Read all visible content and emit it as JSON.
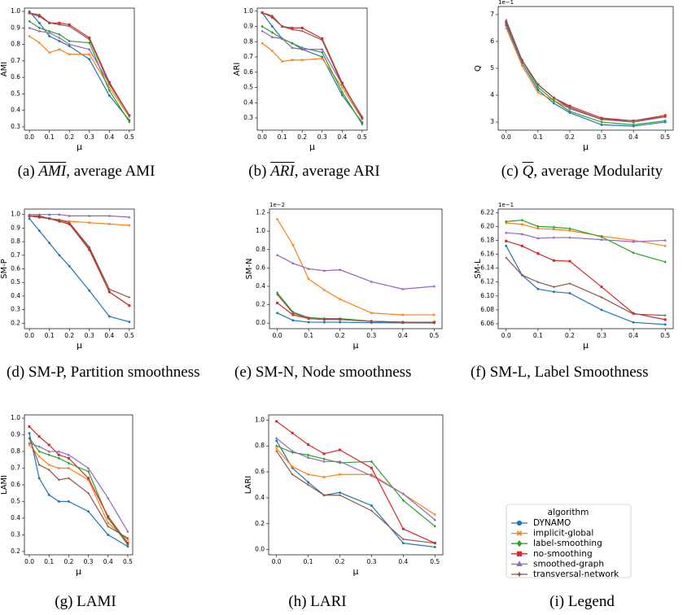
{
  "chart_data": [
    {
      "type": "line",
      "ylabel": "AMI",
      "xlabel": "μ",
      "x": [
        0,
        0.05,
        0.1,
        0.15,
        0.2,
        0.3,
        0.4,
        0.5
      ],
      "xlim": [
        -0.025,
        0.525
      ],
      "xticks": [
        {
          "value": 0,
          "label": "0.0"
        },
        0.1,
        0.2,
        0.3,
        0.4,
        0.5
      ],
      "ylim": [
        0.28,
        1.02
      ],
      "yticks": [
        0.3,
        0.4,
        0.5,
        0.6,
        0.7,
        0.8,
        0.9,
        {
          "value": 1,
          "label": "1.0"
        }
      ],
      "series": [
        {
          "values": [
            1.0,
            0.93,
            0.85,
            0.82,
            0.79,
            0.71,
            0.49,
            0.34
          ]
        },
        {
          "values": [
            0.85,
            0.81,
            0.75,
            0.77,
            0.74,
            0.74,
            0.54,
            0.36
          ]
        },
        {
          "values": [
            0.94,
            0.9,
            0.88,
            0.86,
            0.82,
            0.81,
            0.52,
            0.33
          ]
        },
        {
          "values": [
            0.99,
            0.97,
            0.93,
            0.93,
            0.92,
            0.84,
            0.57,
            0.37
          ]
        },
        {
          "values": [
            0.9,
            0.88,
            0.87,
            0.84,
            0.8,
            0.77,
            0.56,
            0.37
          ]
        },
        {
          "values": [
            0.99,
            0.98,
            0.93,
            0.92,
            0.91,
            0.83,
            0.56,
            0.37
          ]
        }
      ],
      "caption": {
        "label": "(a)",
        "symbol": "AMI",
        "text": ", average AMI"
      }
    },
    {
      "type": "line",
      "ylabel": "ARI",
      "xlabel": "μ",
      "x": [
        0,
        0.05,
        0.1,
        0.15,
        0.2,
        0.3,
        0.4,
        0.5
      ],
      "xlim": [
        -0.025,
        0.525
      ],
      "xticks": [
        {
          "value": 0,
          "label": "0.0"
        },
        0.1,
        0.2,
        0.3,
        0.4,
        0.5
      ],
      "ylim": [
        0.22,
        1.02
      ],
      "yticks": [
        0.3,
        0.4,
        0.5,
        0.6,
        0.7,
        0.8,
        0.9,
        {
          "value": 1,
          "label": "1.0"
        }
      ],
      "series": [
        {
          "values": [
            0.99,
            0.9,
            0.82,
            0.79,
            0.75,
            0.7,
            0.45,
            0.27
          ]
        },
        {
          "values": [
            0.79,
            0.74,
            0.67,
            0.68,
            0.68,
            0.69,
            0.5,
            0.29
          ]
        },
        {
          "values": [
            0.9,
            0.86,
            0.82,
            0.79,
            0.76,
            0.73,
            0.47,
            0.26
          ]
        },
        {
          "values": [
            0.99,
            0.96,
            0.9,
            0.89,
            0.89,
            0.82,
            0.53,
            0.3
          ]
        },
        {
          "values": [
            0.87,
            0.83,
            0.82,
            0.76,
            0.75,
            0.75,
            0.52,
            0.31
          ]
        },
        {
          "values": [
            0.99,
            0.97,
            0.9,
            0.88,
            0.87,
            0.81,
            0.52,
            0.3
          ]
        }
      ],
      "caption": {
        "label": "(b)",
        "symbol": "ARI",
        "text": ", average ARI"
      }
    },
    {
      "type": "line",
      "ylabel": "Q",
      "xlabel": "μ",
      "scale_label": "1e−1",
      "x": [
        0,
        0.05,
        0.1,
        0.15,
        0.2,
        0.3,
        0.4,
        0.5
      ],
      "xlim": [
        -0.025,
        0.525
      ],
      "xticks": [
        {
          "value": 0,
          "label": "0.0"
        },
        0.1,
        0.2,
        0.3,
        0.4,
        0.5
      ],
      "ylim": [
        2.7,
        7.3
      ],
      "yticks": [
        3,
        4,
        5,
        6,
        7
      ],
      "series": [
        {
          "values": [
            6.6,
            5.2,
            4.2,
            3.7,
            3.35,
            2.9,
            2.85,
            3.0
          ]
        },
        {
          "values": [
            6.5,
            5.1,
            4.1,
            3.8,
            3.5,
            3.1,
            3.0,
            3.2
          ]
        },
        {
          "values": [
            6.7,
            5.3,
            4.3,
            3.8,
            3.4,
            3.0,
            2.9,
            3.05
          ]
        },
        {
          "values": [
            6.7,
            5.3,
            4.4,
            3.9,
            3.6,
            3.15,
            3.05,
            3.25
          ]
        },
        {
          "values": [
            6.8,
            5.3,
            4.4,
            3.9,
            3.5,
            3.1,
            3.0,
            3.2
          ]
        },
        {
          "values": [
            6.75,
            5.3,
            4.4,
            3.9,
            3.55,
            3.1,
            3.05,
            3.2
          ]
        }
      ],
      "caption": {
        "label": "(c)",
        "symbol": "Q",
        "text": ", average Modularity"
      }
    },
    {
      "type": "line",
      "ylabel": "SM-P",
      "xlabel": "μ",
      "x": [
        0,
        0.05,
        0.1,
        0.15,
        0.2,
        0.3,
        0.4,
        0.5
      ],
      "xlim": [
        -0.025,
        0.525
      ],
      "xticks": [
        {
          "value": 0,
          "label": "0.0"
        },
        0.1,
        0.2,
        0.3,
        0.4,
        0.5
      ],
      "ylim": [
        0.16,
        1.04
      ],
      "yticks": [
        0.2,
        0.3,
        0.4,
        0.5,
        0.6,
        0.7,
        0.8,
        0.9,
        {
          "value": 1,
          "label": "1.0"
        }
      ],
      "series": [
        {
          "values": [
            0.97,
            0.88,
            0.79,
            0.7,
            0.62,
            0.44,
            0.25,
            0.21
          ]
        },
        {
          "values": [
            0.99,
            0.98,
            0.97,
            0.96,
            0.95,
            0.94,
            0.93,
            0.92
          ]
        },
        {
          "values": [
            0.99,
            0.98,
            0.97,
            0.95,
            0.93,
            0.75,
            0.43,
            0.33
          ]
        },
        {
          "values": [
            0.99,
            0.98,
            0.97,
            0.95,
            0.93,
            0.74,
            0.43,
            0.33
          ]
        },
        {
          "values": [
            1.0,
            1.0,
            1.0,
            1.0,
            0.99,
            0.99,
            0.99,
            0.98
          ]
        },
        {
          "values": [
            0.99,
            0.99,
            0.97,
            0.96,
            0.94,
            0.76,
            0.45,
            0.39
          ]
        }
      ],
      "caption": {
        "label": "(d)",
        "text": "SM-P, Partition smoothness"
      }
    },
    {
      "type": "line",
      "ylabel": "SM-N",
      "xlabel": "μ",
      "scale_label": "1e−2",
      "x": [
        0,
        0.05,
        0.1,
        0.15,
        0.2,
        0.3,
        0.4,
        0.5
      ],
      "xlim": [
        -0.025,
        0.525
      ],
      "xticks": [
        {
          "value": 0,
          "label": "0.0"
        },
        0.1,
        0.2,
        0.3,
        0.4,
        0.5
      ],
      "ylim": [
        -0.06,
        1.24
      ],
      "yticks": [
        {
          "value": 0,
          "label": "0.0"
        },
        0.2,
        0.4,
        0.6,
        0.8,
        {
          "value": 1,
          "label": "1.0"
        },
        1.2
      ],
      "series": [
        {
          "values": [
            0.11,
            0.03,
            0.01,
            0.01,
            0.01,
            0.005,
            0.003,
            0.002
          ]
        },
        {
          "values": [
            1.13,
            0.85,
            0.48,
            0.36,
            0.26,
            0.11,
            0.09,
            0.09
          ]
        },
        {
          "values": [
            0.33,
            0.12,
            0.06,
            0.05,
            0.05,
            0.02,
            0.01,
            0.01
          ]
        },
        {
          "values": [
            0.22,
            0.09,
            0.05,
            0.04,
            0.04,
            0.02,
            0.01,
            0.01
          ]
        },
        {
          "values": [
            0.74,
            0.65,
            0.59,
            0.57,
            0.58,
            0.45,
            0.37,
            0.4
          ]
        },
        {
          "values": [
            0.31,
            0.11,
            0.05,
            0.04,
            0.04,
            0.02,
            0.01,
            0.01
          ]
        }
      ],
      "caption": {
        "label": "(e)",
        "text": "SM-N, Node smooth­ness"
      }
    },
    {
      "type": "line",
      "ylabel": "SM-L",
      "xlabel": "μ",
      "scale_label": "1e−1",
      "x": [
        0,
        0.05,
        0.1,
        0.15,
        0.2,
        0.3,
        0.4,
        0.5
      ],
      "xlim": [
        -0.025,
        0.525
      ],
      "xticks": [
        {
          "value": 0,
          "label": "0.0"
        },
        0.1,
        0.2,
        0.3,
        0.4,
        0.5
      ],
      "ylim": [
        6.053,
        6.225
      ],
      "yticks": [
        6.06,
        6.08,
        {
          "value": 6.1,
          "label": "6.10"
        },
        6.12,
        6.14,
        6.16,
        6.18,
        {
          "value": 6.2,
          "label": "6.20"
        },
        6.22
      ],
      "series": [
        {
          "values": [
            6.172,
            6.13,
            6.11,
            6.106,
            6.104,
            6.08,
            6.062,
            6.059
          ]
        },
        {
          "values": [
            6.205,
            6.203,
            6.197,
            6.196,
            6.194,
            6.186,
            6.18,
            6.172
          ]
        },
        {
          "values": [
            6.207,
            6.209,
            6.2,
            6.199,
            6.197,
            6.185,
            6.162,
            6.149
          ]
        },
        {
          "values": [
            6.179,
            6.172,
            6.161,
            6.151,
            6.15,
            6.113,
            6.075,
            6.066
          ]
        },
        {
          "values": [
            6.191,
            6.189,
            6.183,
            6.184,
            6.184,
            6.181,
            6.178,
            6.18
          ]
        },
        {
          "values": [
            6.155,
            6.13,
            6.12,
            6.113,
            6.118,
            6.098,
            6.074,
            6.072
          ]
        }
      ],
      "caption": {
        "label": "(f)",
        "text": "SM-L, Label Smooth­ness"
      }
    },
    {
      "type": "line",
      "ylabel": "LAMI",
      "xlabel": "μ",
      "x": [
        0,
        0.05,
        0.1,
        0.15,
        0.2,
        0.3,
        0.4,
        0.5
      ],
      "xlim": [
        -0.025,
        0.525
      ],
      "xticks": [
        {
          "value": 0,
          "label": "0.0"
        },
        0.1,
        0.2,
        0.3,
        0.4,
        0.5
      ],
      "ylim": [
        0.18,
        1.02
      ],
      "yticks": [
        0.2,
        0.3,
        0.4,
        0.5,
        0.6,
        0.7,
        0.8,
        0.9,
        {
          "value": 1,
          "label": "1.0"
        }
      ],
      "series": [
        {
          "values": [
            0.91,
            0.64,
            0.54,
            0.5,
            0.5,
            0.44,
            0.3,
            0.23
          ]
        },
        {
          "values": [
            0.84,
            0.77,
            0.72,
            0.7,
            0.7,
            0.63,
            0.37,
            0.27
          ]
        },
        {
          "values": [
            0.88,
            0.8,
            0.78,
            0.76,
            0.73,
            0.68,
            0.4,
            0.24
          ]
        },
        {
          "values": [
            0.95,
            0.89,
            0.84,
            0.78,
            0.76,
            0.64,
            0.41,
            0.25
          ]
        },
        {
          "values": [
            0.85,
            0.83,
            0.8,
            0.8,
            0.78,
            0.7,
            0.52,
            0.32
          ]
        },
        {
          "values": [
            0.88,
            0.72,
            0.69,
            0.63,
            0.64,
            0.55,
            0.35,
            0.28
          ]
        }
      ],
      "caption": {
        "label": "(g)",
        "text": "LAMI"
      }
    },
    {
      "type": "line",
      "ylabel": "LARI",
      "xlabel": "μ",
      "x": [
        0,
        0.05,
        0.1,
        0.15,
        0.2,
        0.3,
        0.4,
        0.5
      ],
      "xlim": [
        -0.025,
        0.525
      ],
      "xticks": [
        {
          "value": 0,
          "label": "0.0"
        },
        0.1,
        0.2,
        0.3,
        0.4,
        0.5
      ],
      "ylim": [
        -0.04,
        1.04
      ],
      "yticks": [
        {
          "value": 0,
          "label": "0.0"
        },
        0.2,
        0.4,
        0.6,
        0.8,
        {
          "value": 1,
          "label": "1.0"
        }
      ],
      "series": [
        {
          "values": [
            0.84,
            0.63,
            0.52,
            0.42,
            0.44,
            0.34,
            0.05,
            0.02
          ]
        },
        {
          "values": [
            0.78,
            0.64,
            0.58,
            0.56,
            0.58,
            0.58,
            0.43,
            0.27
          ]
        },
        {
          "values": [
            0.8,
            0.75,
            0.73,
            0.7,
            0.67,
            0.68,
            0.38,
            0.18
          ]
        },
        {
          "values": [
            0.99,
            0.9,
            0.81,
            0.74,
            0.77,
            0.63,
            0.16,
            0.05
          ]
        },
        {
          "values": [
            0.86,
            0.76,
            0.71,
            0.68,
            0.68,
            0.57,
            0.43,
            0.23
          ]
        },
        {
          "values": [
            0.76,
            0.58,
            0.5,
            0.42,
            0.42,
            0.3,
            0.08,
            0.05
          ]
        }
      ],
      "caption": {
        "label": "(h)",
        "text": "LARI"
      }
    }
  ],
  "legend": {
    "title": "algorithm",
    "names": [
      "DYNAMO",
      "implicit-global",
      "label-smoothing",
      "no-smoothing",
      "smoothed-graph",
      "transversal-network"
    ],
    "colors": [
      "#1f77b4",
      "#ff7f0e",
      "#2ca02c",
      "#d62728",
      "#9467bd",
      "#8c564b"
    ],
    "caption": {
      "label": "(i)",
      "text": "Legend"
    }
  }
}
